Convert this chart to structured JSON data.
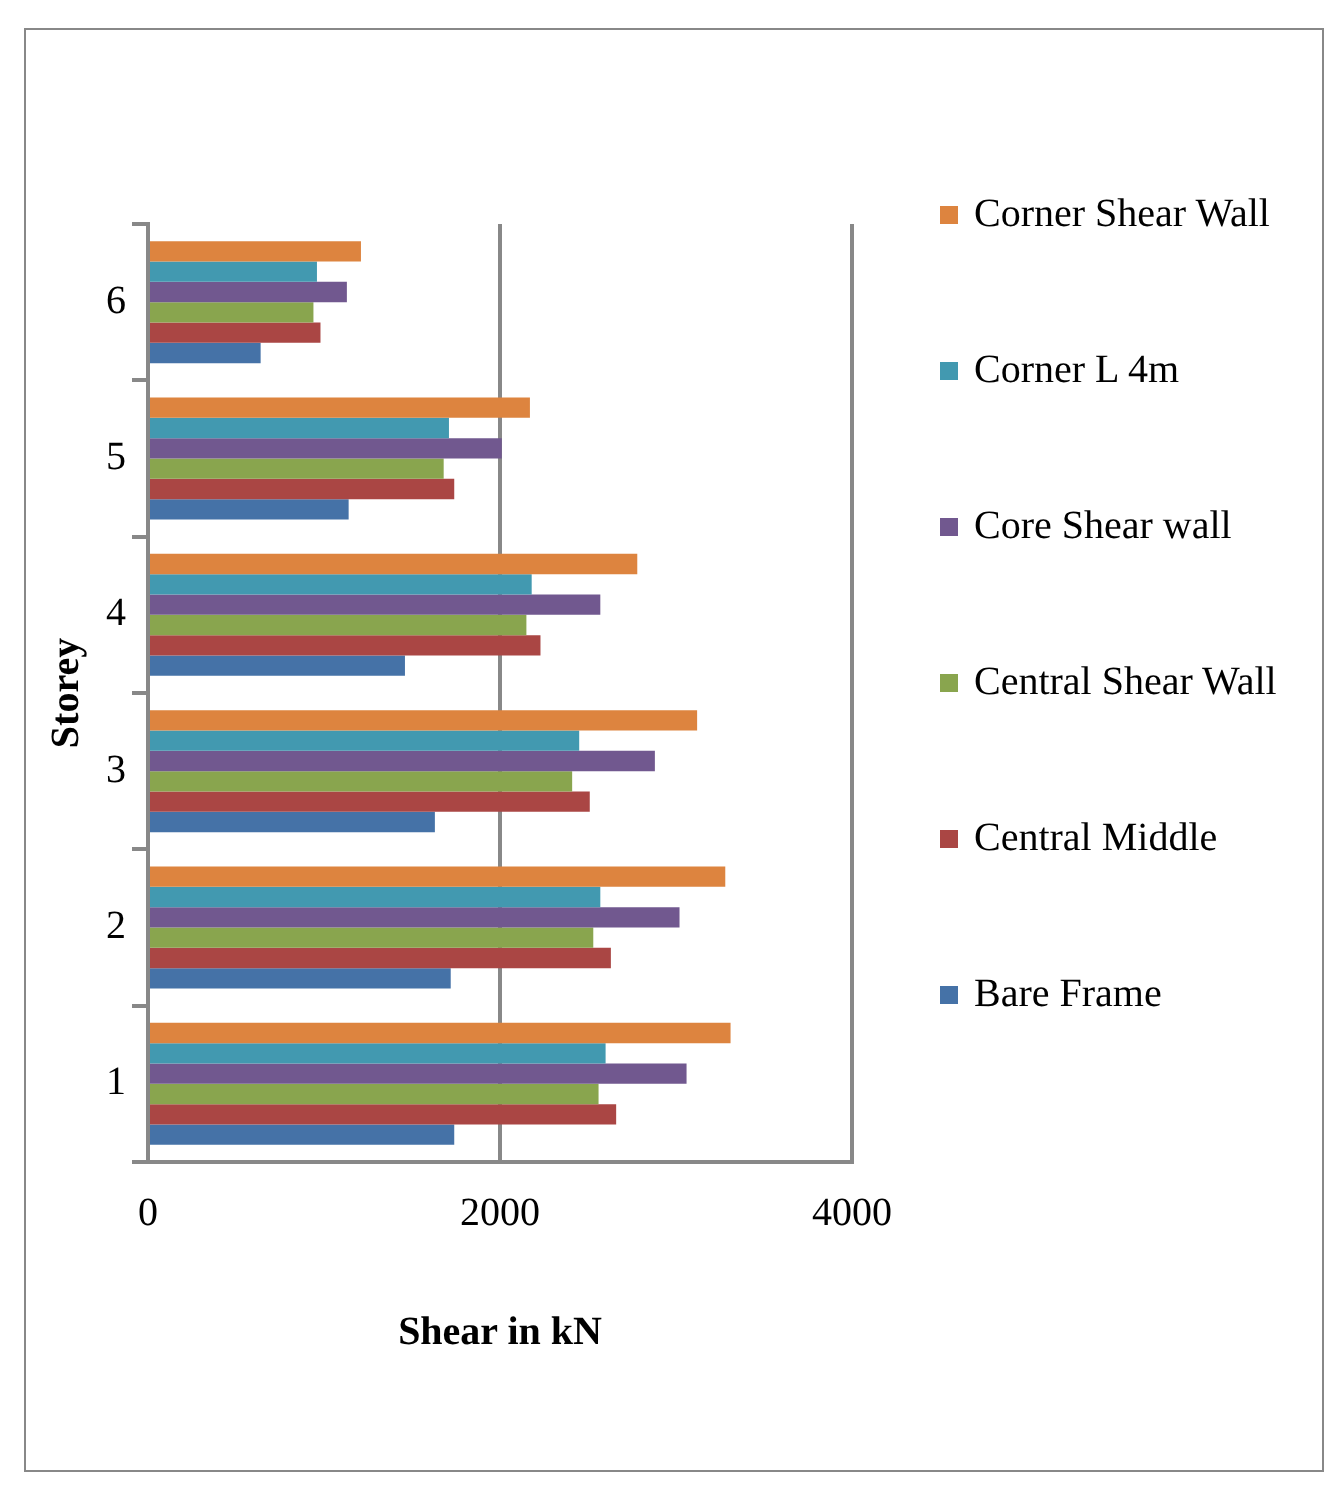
{
  "chart_data": {
    "type": "bar",
    "orientation": "horizontal",
    "xlabel": "Shear in kN",
    "ylabel": "Storey",
    "categories": [
      "6",
      "5",
      "4",
      "3",
      "2",
      "1"
    ],
    "series": [
      {
        "name": "Corner Shear Wall",
        "color": "#dd843f",
        "values": [
          1210,
          2170,
          2780,
          3120,
          3280,
          3310
        ]
      },
      {
        "name": "Corner L 4m",
        "color": "#4299b0",
        "values": [
          960,
          1710,
          2180,
          2450,
          2570,
          2600
        ]
      },
      {
        "name": "Core Shear wall",
        "color": "#71588f",
        "values": [
          1130,
          2010,
          2570,
          2880,
          3020,
          3060
        ]
      },
      {
        "name": "Central Shear Wall",
        "color": "#89a54e",
        "values": [
          940,
          1680,
          2150,
          2410,
          2530,
          2560
        ]
      },
      {
        "name": "Central Middle",
        "color": "#aa4644",
        "values": [
          980,
          1740,
          2230,
          2510,
          2630,
          2660
        ]
      },
      {
        "name": "Bare Frame",
        "color": "#4572a7",
        "values": [
          640,
          1140,
          1460,
          1630,
          1720,
          1740
        ]
      }
    ],
    "xlim": [
      0,
      4000
    ],
    "xticks": [
      0,
      2000,
      4000
    ],
    "grid": "x",
    "legend": "right"
  }
}
